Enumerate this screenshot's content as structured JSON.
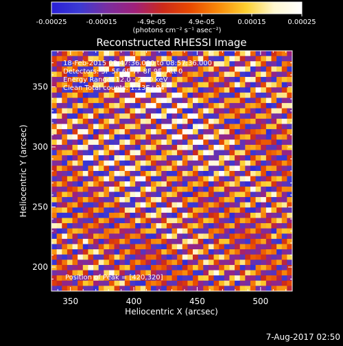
{
  "colorbar": {
    "ticks": [
      "-0.00025",
      "-0.00015",
      "-4.9e-05",
      "4.9e-05",
      "0.00015",
      "0.00025"
    ],
    "units": "(photons cm⁻² s⁻¹ asec⁻²)",
    "stops": [
      "#2a1fd6",
      "#3b3ad4",
      "#7a2ea0",
      "#a0207a",
      "#cc2a1a",
      "#e84a00",
      "#f88a0a",
      "#fdd030",
      "#fff8d0",
      "#ffffff"
    ]
  },
  "chart_data": {
    "type": "heatmap",
    "title": "Reconstructed RHESSI Image",
    "xlabel": "Heliocentric X (arcsec)",
    "ylabel": "Heliocentric Y (arcsec)",
    "xlim": [
      335,
      525
    ],
    "ylim": [
      180,
      380
    ],
    "x_ticks": [
      350,
      400,
      450,
      500
    ],
    "y_ticks": [
      200,
      250,
      300,
      350
    ],
    "clim": [
      -0.00025,
      0.00025
    ],
    "cmap": "RHESSI purple-red-yellow-white",
    "annotations": [
      "18-Feb-2015 08:47:36.000 to 08:57:36.000",
      "Detectors: 3F 5F 6F 7F 8F 9F, Att 0",
      "Energy Range: 12.0 - 25.0 keV",
      "Clean    Total counts: 1.13E+04"
    ],
    "peak_label": "Position of Peak = [420,320]",
    "peak_position": [
      420,
      320
    ]
  },
  "timestamp": "7-Aug-2017 02:50"
}
